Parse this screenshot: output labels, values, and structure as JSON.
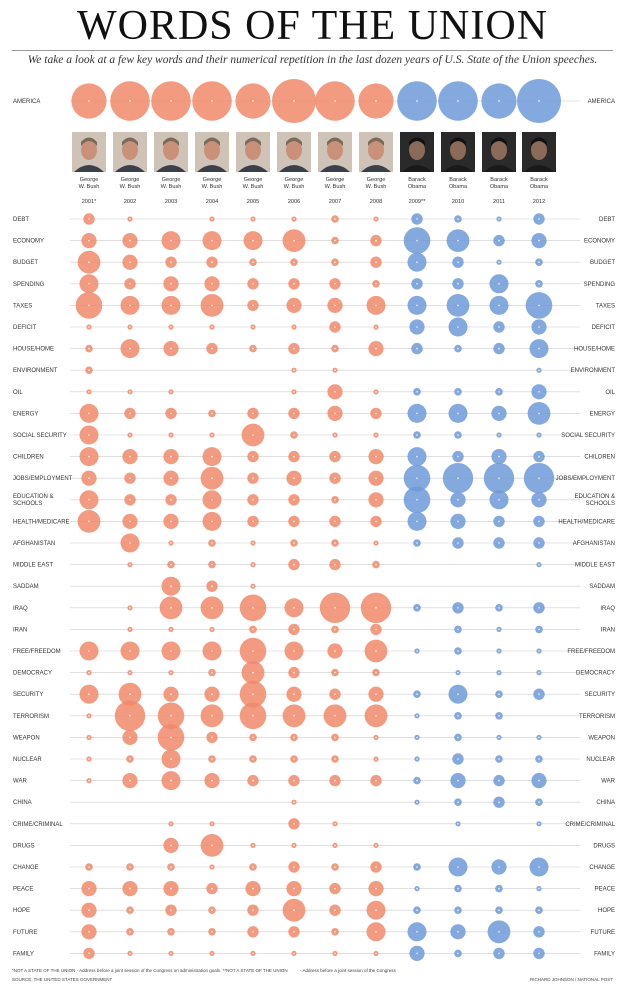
{
  "title": "WORDS OF THE UNION",
  "subtitle": "We take a look at a few key words and their numerical repetition in the last dozen years of U.S. State of the Union speeches.",
  "footnotes": {
    "note1": "*NOT A STATE OF THE UNION - Address before a joint session of the Congress on administration goals. **NOT A STATE OF THE UNION",
    "note2": "- Address before a joint session of the Congress",
    "source": "SOURCE: THE UNITED STATES GOVERNMENT",
    "credit": "RICHARD JOHNSON / NATIONAL POST"
  },
  "colors": {
    "bush": "#f0896a",
    "obama": "#6f9ad8",
    "overlap_bush": "#e8553c",
    "overlap_obama": "#3f6fc4",
    "gridline": "#cccccc"
  },
  "chart_data": {
    "type": "bubble-matrix",
    "title": "WORDS OF THE UNION",
    "value_scale": "relative bubble size (0-10), estimated from bubble areas",
    "speeches": [
      {
        "president": "George W. Bush",
        "name_line1": "George",
        "name_line2": "W. Bush",
        "year": "2001*",
        "party_color": "bush"
      },
      {
        "president": "George W. Bush",
        "name_line1": "George",
        "name_line2": "W. Bush",
        "year": "2002",
        "party_color": "bush"
      },
      {
        "president": "George W. Bush",
        "name_line1": "George",
        "name_line2": "W. Bush",
        "year": "2003",
        "party_color": "bush"
      },
      {
        "president": "George W. Bush",
        "name_line1": "George",
        "name_line2": "W. Bush",
        "year": "2004",
        "party_color": "bush"
      },
      {
        "president": "George W. Bush",
        "name_line1": "George",
        "name_line2": "W. Bush",
        "year": "2005",
        "party_color": "bush"
      },
      {
        "president": "George W. Bush",
        "name_line1": "George",
        "name_line2": "W. Bush",
        "year": "2006",
        "party_color": "bush"
      },
      {
        "president": "George W. Bush",
        "name_line1": "George",
        "name_line2": "W. Bush",
        "year": "2007",
        "party_color": "bush"
      },
      {
        "president": "George W. Bush",
        "name_line1": "George",
        "name_line2": "W. Bush",
        "year": "2008",
        "party_color": "bush"
      },
      {
        "president": "Barack Obama",
        "name_line1": "Barack",
        "name_line2": "Obama",
        "year": "2009**",
        "party_color": "obama"
      },
      {
        "president": "Barack Obama",
        "name_line1": "Barack",
        "name_line2": "Obama",
        "year": "2010",
        "party_color": "obama"
      },
      {
        "president": "Barack Obama",
        "name_line1": "Barack",
        "name_line2": "Obama",
        "year": "2011",
        "party_color": "obama"
      },
      {
        "president": "Barack Obama",
        "name_line1": "Barack",
        "name_line2": "Obama",
        "year": "2012",
        "party_color": "obama"
      }
    ],
    "america": {
      "label": "AMERICA",
      "values": [
        8,
        9,
        9,
        9,
        8,
        10,
        9,
        8,
        9,
        9,
        8,
        10
      ]
    },
    "words": [
      {
        "label": "DEBT",
        "values": [
          3,
          1,
          0,
          1,
          1,
          1,
          2,
          1,
          3,
          2,
          1,
          3
        ]
      },
      {
        "label": "ECONOMY",
        "values": [
          4,
          4,
          5,
          5,
          5,
          6,
          2,
          3,
          7,
          6,
          3,
          4
        ]
      },
      {
        "label": "BUDGET",
        "values": [
          6,
          4,
          3,
          3,
          2,
          2,
          2,
          3,
          5,
          3,
          1,
          2
        ]
      },
      {
        "label": "SPENDING",
        "values": [
          5,
          3,
          4,
          4,
          3,
          3,
          3,
          2,
          3,
          3,
          5,
          2
        ]
      },
      {
        "label": "TAXES",
        "values": [
          7,
          5,
          5,
          6,
          3,
          4,
          4,
          5,
          5,
          6,
          5,
          7
        ]
      },
      {
        "label": "DEFICIT",
        "values": [
          1,
          1,
          1,
          1,
          1,
          1,
          3,
          1,
          4,
          5,
          3,
          4
        ]
      },
      {
        "label": "HOUSE/HOME",
        "values": [
          2,
          5,
          4,
          3,
          2,
          3,
          2,
          4,
          3,
          2,
          3,
          5
        ]
      },
      {
        "label": "ENVIRONMENT",
        "values": [
          2,
          0,
          0,
          0,
          0,
          1,
          1,
          0,
          0,
          0,
          0,
          1
        ]
      },
      {
        "label": "OIL",
        "values": [
          1,
          1,
          1,
          0,
          0,
          1,
          4,
          1,
          2,
          2,
          2,
          4
        ]
      },
      {
        "label": "ENERGY",
        "values": [
          5,
          3,
          3,
          2,
          3,
          3,
          4,
          3,
          5,
          5,
          4,
          6
        ]
      },
      {
        "label": "SOCIAL SECURITY",
        "values": [
          5,
          1,
          1,
          1,
          6,
          2,
          1,
          1,
          2,
          2,
          1,
          1
        ]
      },
      {
        "label": "CHILDREN",
        "values": [
          5,
          4,
          4,
          5,
          3,
          3,
          3,
          4,
          5,
          3,
          4,
          3
        ]
      },
      {
        "label": "JOBS/EMPLOYMENT",
        "values": [
          4,
          3,
          4,
          6,
          3,
          4,
          3,
          4,
          7,
          8,
          8,
          8
        ]
      },
      {
        "label": "EDUCATION & SCHOOLS",
        "values": [
          5,
          3,
          3,
          5,
          3,
          3,
          2,
          4,
          7,
          4,
          5,
          4
        ]
      },
      {
        "label": "HEALTH/MEDICARE",
        "values": [
          6,
          4,
          4,
          5,
          3,
          3,
          3,
          3,
          5,
          4,
          3,
          3
        ]
      },
      {
        "label": "AFGHANISTAN",
        "values": [
          0,
          5,
          1,
          2,
          1,
          2,
          2,
          1,
          2,
          3,
          3,
          3
        ]
      },
      {
        "label": "MIDDLE EAST",
        "values": [
          0,
          1,
          2,
          2,
          1,
          3,
          3,
          2,
          0,
          0,
          0,
          1
        ]
      },
      {
        "label": "SADDAM",
        "values": [
          0,
          0,
          5,
          3,
          1,
          0,
          0,
          0,
          0,
          0,
          0,
          0
        ]
      },
      {
        "label": "IRAQ",
        "values": [
          0,
          1,
          6,
          6,
          7,
          5,
          8,
          8,
          2,
          3,
          2,
          3
        ]
      },
      {
        "label": "IRAN",
        "values": [
          0,
          1,
          1,
          1,
          2,
          3,
          2,
          3,
          0,
          2,
          1,
          2
        ]
      },
      {
        "label": "FREE/FREEDOM",
        "values": [
          5,
          5,
          5,
          5,
          7,
          5,
          4,
          6,
          1,
          2,
          1,
          1
        ]
      },
      {
        "label": "DEMOCRACY",
        "values": [
          1,
          1,
          1,
          2,
          6,
          3,
          2,
          2,
          0,
          1,
          1,
          1
        ]
      },
      {
        "label": "SECURITY",
        "values": [
          5,
          6,
          4,
          4,
          7,
          4,
          3,
          4,
          2,
          5,
          2,
          3
        ]
      },
      {
        "label": "TERRORISM",
        "values": [
          1,
          8,
          7,
          6,
          7,
          6,
          6,
          6,
          1,
          2,
          2,
          0
        ]
      },
      {
        "label": "WEAPON",
        "values": [
          1,
          4,
          7,
          3,
          2,
          2,
          2,
          1,
          1,
          2,
          1,
          1
        ]
      },
      {
        "label": "NUCLEAR",
        "values": [
          1,
          2,
          5,
          2,
          2,
          2,
          2,
          1,
          1,
          3,
          2,
          2
        ]
      },
      {
        "label": "WAR",
        "values": [
          1,
          4,
          5,
          4,
          3,
          3,
          3,
          3,
          2,
          4,
          3,
          4
        ]
      },
      {
        "label": "CHINA",
        "values": [
          0,
          0,
          0,
          0,
          0,
          1,
          0,
          0,
          1,
          2,
          3,
          2
        ]
      },
      {
        "label": "CRIME/CRIMINAL",
        "values": [
          0,
          0,
          1,
          1,
          0,
          3,
          1,
          0,
          0,
          1,
          0,
          1
        ]
      },
      {
        "label": "DRUGS",
        "values": [
          0,
          0,
          4,
          6,
          1,
          1,
          1,
          1,
          0,
          0,
          0,
          0
        ]
      },
      {
        "label": "CHANGE",
        "values": [
          2,
          2,
          2,
          1,
          2,
          3,
          2,
          3,
          2,
          5,
          4,
          5
        ]
      },
      {
        "label": "PEACE",
        "values": [
          4,
          4,
          4,
          3,
          4,
          4,
          3,
          4,
          1,
          2,
          2,
          1
        ]
      },
      {
        "label": "HOPE",
        "values": [
          4,
          2,
          3,
          2,
          3,
          6,
          3,
          5,
          2,
          2,
          2,
          2
        ]
      },
      {
        "label": "FUTURE",
        "values": [
          4,
          2,
          2,
          2,
          3,
          3,
          2,
          5,
          5,
          4,
          6,
          3
        ]
      },
      {
        "label": "FAMILY",
        "values": [
          3,
          1,
          1,
          1,
          1,
          1,
          1,
          1,
          4,
          2,
          3,
          3
        ]
      }
    ]
  }
}
